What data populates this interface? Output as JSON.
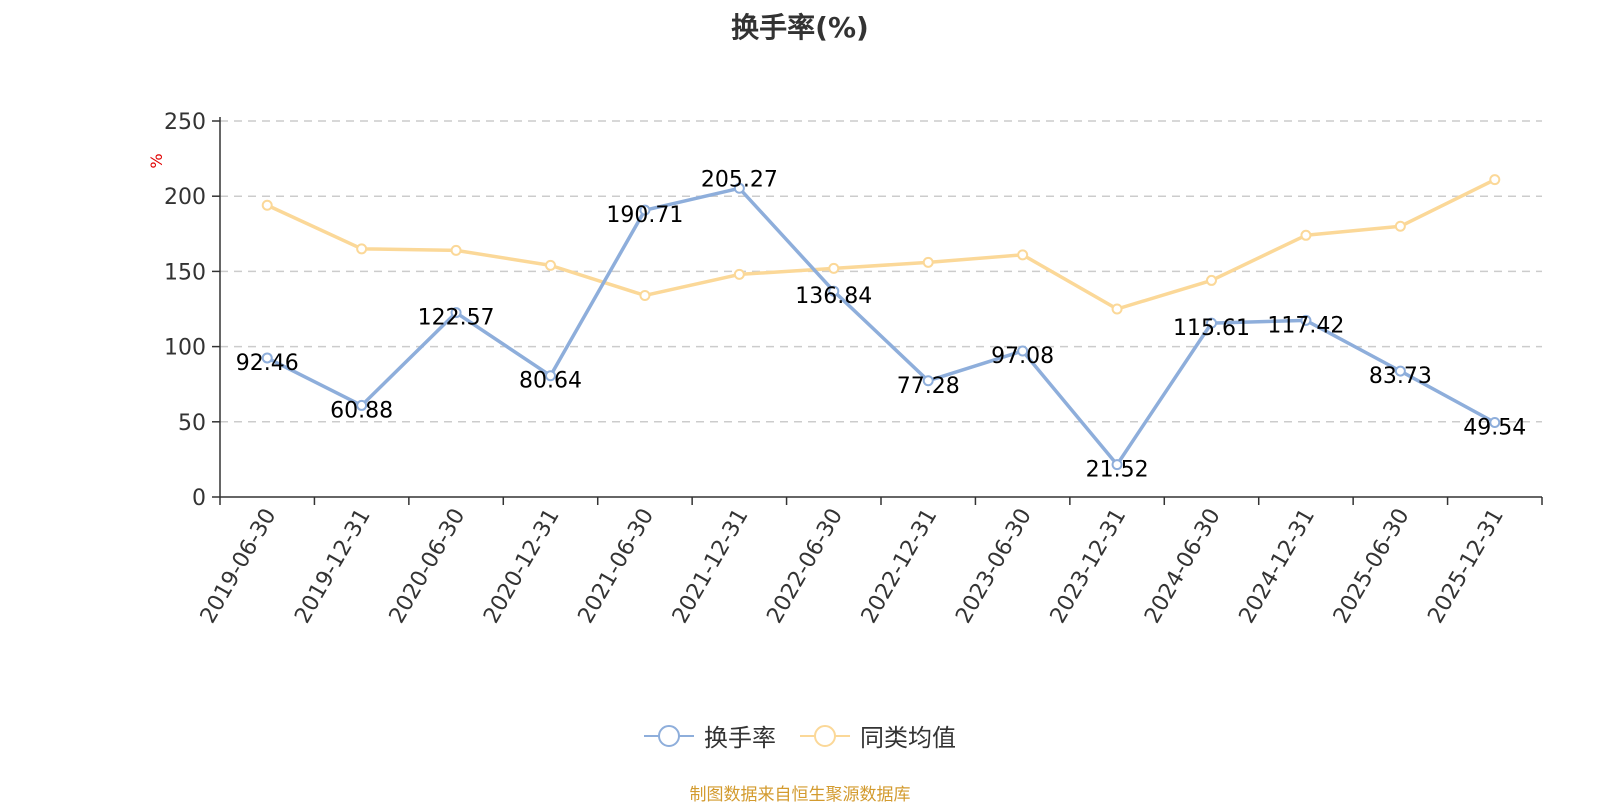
{
  "chart_data": {
    "type": "line",
    "title": "换手率(%)",
    "ylabel": "%",
    "xlabel": "",
    "ylim": [
      0,
      250
    ],
    "yticks": [
      0,
      50,
      100,
      150,
      200,
      250
    ],
    "grid": true,
    "legend_position": "bottom",
    "categories": [
      "2019-06-30",
      "2019-12-31",
      "2020-06-30",
      "2020-12-31",
      "2021-06-30",
      "2021-12-31",
      "2022-06-30",
      "2022-12-31",
      "2023-06-30",
      "2023-12-31",
      "2024-06-30",
      "2024-12-31",
      "2025-06-30",
      "2025-12-31"
    ],
    "series": [
      {
        "name": "换手率",
        "color": "#8eaedb",
        "show_labels": true,
        "values": [
          92.46,
          60.88,
          122.57,
          80.64,
          190.71,
          205.27,
          136.84,
          77.28,
          97.08,
          21.52,
          115.61,
          117.42,
          83.73,
          49.54
        ]
      },
      {
        "name": "同类均值",
        "color": "#fbd898",
        "show_labels": false,
        "values": [
          194,
          165,
          164,
          154,
          134,
          148,
          152,
          156,
          161,
          125,
          144,
          174,
          180,
          211
        ]
      }
    ]
  },
  "source_note": "制图数据来自恒生聚源数据库"
}
